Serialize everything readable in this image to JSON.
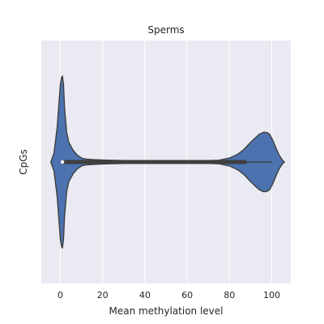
{
  "chart_data": {
    "type": "violin",
    "title": "Sperms",
    "xlabel": "Mean methylation level",
    "ylabel": "CpGs",
    "xlim": [
      -9,
      109
    ],
    "xticks": [
      0,
      20,
      40,
      60,
      80,
      100
    ],
    "grid": true,
    "colors": {
      "background": "#eaeaf2",
      "grid": "#ffffff",
      "violin": "#4c72b0",
      "outline": "#3f3f3f"
    },
    "density": {
      "x": [
        -4.5,
        -3,
        -1.5,
        0,
        0.5,
        1,
        1.5,
        2,
        3,
        4,
        6,
        8,
        10,
        12,
        15,
        20,
        30,
        40,
        50,
        60,
        70,
        75,
        80,
        84,
        87,
        90,
        92,
        94,
        96,
        97.5,
        99,
        100.5,
        102,
        103.5,
        105,
        106
      ],
      "half_width": [
        0,
        0.09,
        0.35,
        0.78,
        0.85,
        0.87,
        0.78,
        0.55,
        0.3,
        0.2,
        0.12,
        0.07,
        0.04,
        0.03,
        0.025,
        0.02,
        0.015,
        0.015,
        0.015,
        0.015,
        0.015,
        0.018,
        0.04,
        0.08,
        0.13,
        0.2,
        0.24,
        0.28,
        0.3,
        0.3,
        0.28,
        0.22,
        0.14,
        0.07,
        0.02,
        0
      ]
    },
    "box": {
      "q1": 1,
      "median": 1,
      "q3": 88,
      "whisker_low": 0,
      "whisker_high": 100
    }
  }
}
